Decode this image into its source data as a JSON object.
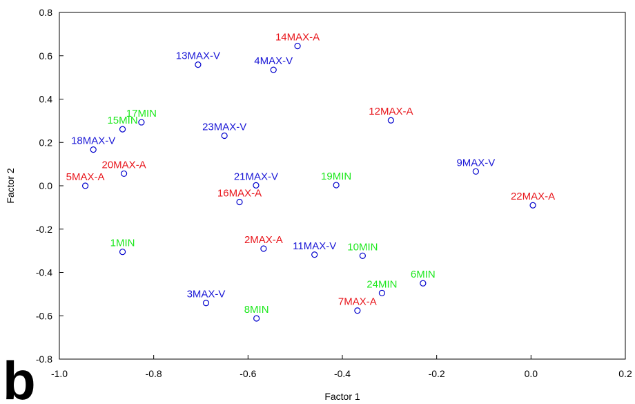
{
  "chart_data": {
    "type": "scatter",
    "xlabel": "Factor 1",
    "ylabel": "Factor 2",
    "xlim": [
      -1.0,
      0.2
    ],
    "ylim": [
      -0.8,
      0.8
    ],
    "xticks": [
      "-1.0",
      "-0.8",
      "-0.6",
      "-0.4",
      "-0.2",
      "0.0",
      "0.2"
    ],
    "yticks": [
      "0.8",
      "0.6",
      "0.4",
      "0.2",
      "0.0",
      "-0.2",
      "-0.4",
      "-0.6",
      "-0.8"
    ],
    "xtick_values": [
      -1.0,
      -0.8,
      -0.6,
      -0.4,
      -0.2,
      0.0,
      0.2
    ],
    "ytick_values": [
      0.8,
      0.6,
      0.4,
      0.2,
      0.0,
      -0.2,
      -0.4,
      -0.6,
      -0.8
    ],
    "grid": false,
    "marker_color": "#0000cc",
    "group_colors": {
      "MAX-A": "#e8161c",
      "MAX-V": "#1a17d6",
      "MIN": "#1de81d"
    },
    "points": [
      {
        "label": "14MAX-A",
        "group": "MAX-A",
        "x": -0.495,
        "y": 0.645
      },
      {
        "label": "13MAX-V",
        "group": "MAX-V",
        "x": -0.706,
        "y": 0.559
      },
      {
        "label": "4MAX-V",
        "group": "MAX-V",
        "x": -0.546,
        "y": 0.535
      },
      {
        "label": "12MAX-A",
        "group": "MAX-A",
        "x": -0.297,
        "y": 0.302
      },
      {
        "label": "17MIN",
        "group": "MIN",
        "x": -0.826,
        "y": 0.293
      },
      {
        "label": "15MIN",
        "group": "MIN",
        "x": -0.866,
        "y": 0.261
      },
      {
        "label": "23MAX-V",
        "group": "MAX-V",
        "x": -0.65,
        "y": 0.231
      },
      {
        "label": "18MAX-V",
        "group": "MAX-V",
        "x": -0.928,
        "y": 0.167
      },
      {
        "label": "9MAX-V",
        "group": "MAX-V",
        "x": -0.117,
        "y": 0.066
      },
      {
        "label": "20MAX-A",
        "group": "MAX-A",
        "x": -0.863,
        "y": 0.056
      },
      {
        "label": "5MAX-A",
        "group": "MAX-A",
        "x": -0.945,
        "y": 0.0
      },
      {
        "label": "21MAX-V",
        "group": "MAX-V",
        "x": -0.583,
        "y": 0.002
      },
      {
        "label": "19MIN",
        "group": "MIN",
        "x": -0.413,
        "y": 0.003
      },
      {
        "label": "22MAX-A",
        "group": "MAX-A",
        "x": 0.004,
        "y": -0.09
      },
      {
        "label": "16MAX-A",
        "group": "MAX-A",
        "x": -0.618,
        "y": -0.075
      },
      {
        "label": "1MIN",
        "group": "MIN",
        "x": -0.866,
        "y": -0.305
      },
      {
        "label": "2MAX-A",
        "group": "MAX-A",
        "x": -0.567,
        "y": -0.29
      },
      {
        "label": "11MAX-V",
        "group": "MAX-V",
        "x": -0.459,
        "y": -0.318
      },
      {
        "label": "10MIN",
        "group": "MIN",
        "x": -0.357,
        "y": -0.323
      },
      {
        "label": "6MIN",
        "group": "MIN",
        "x": -0.229,
        "y": -0.45
      },
      {
        "label": "24MIN",
        "group": "MIN",
        "x": -0.316,
        "y": -0.495
      },
      {
        "label": "3MAX-V",
        "group": "MAX-V",
        "x": -0.689,
        "y": -0.541
      },
      {
        "label": "7MAX-A",
        "group": "MAX-A",
        "x": -0.368,
        "y": -0.576
      },
      {
        "label": "8MIN",
        "group": "MIN",
        "x": -0.582,
        "y": -0.612
      }
    ]
  },
  "panel_letter": "b"
}
